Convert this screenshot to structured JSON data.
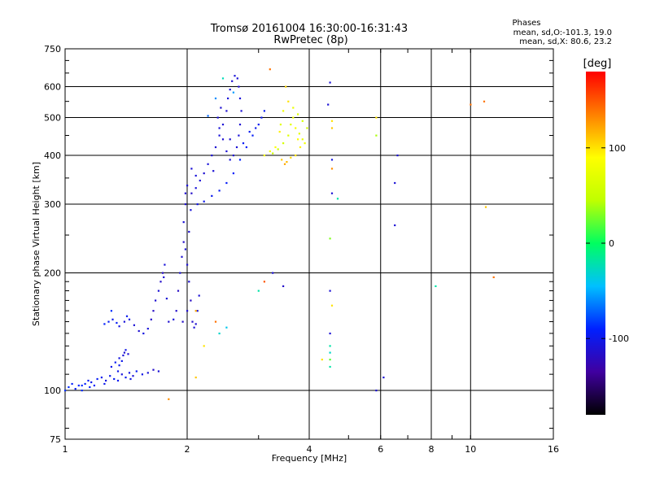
{
  "chart_data": {
    "type": "scatter",
    "title": "Tromsø 20161004 16:30:00-16:31:43",
    "subtitle": "RwPretec (8p)",
    "xlabel": "Frequency [MHz]",
    "ylabel": "Stationary phase Virtual Height [km]",
    "x_scale": "log",
    "y_scale": "log",
    "xlim": [
      1,
      16
    ],
    "ylim": [
      75,
      750
    ],
    "x_ticks": [
      1,
      2,
      4,
      6,
      8,
      10,
      16
    ],
    "x_tick_labels": [
      "1",
      "2",
      "4",
      "6",
      "8",
      "10",
      "16"
    ],
    "y_ticks": [
      75,
      100,
      200,
      300,
      400,
      500,
      600,
      750
    ],
    "y_tick_labels": [
      "75",
      "100",
      "200",
      "300",
      "400",
      "500",
      "600",
      "750"
    ],
    "grid": true,
    "legend": {
      "title": "Phases",
      "lines": [
        "mean, sd,O:-101.3, 19.0",
        "mean, sd,X:  80.6, 23.2"
      ]
    },
    "colorbar": {
      "label": "[deg]",
      "range": [
        -180,
        180
      ],
      "ticks": [
        100,
        0,
        -100
      ],
      "tick_labels": [
        "100",
        "0",
        "-100"
      ],
      "colormap": [
        "#000000",
        "#4000a0",
        "#0020ff",
        "#00c0ff",
        "#00ff60",
        "#c0ff00",
        "#ffff00",
        "#ff8000",
        "#ff0000"
      ]
    },
    "series": [
      {
        "points": [
          [
            1.0,
            100,
            -85
          ],
          [
            1.02,
            102,
            -88
          ],
          [
            1.04,
            104,
            -92
          ],
          [
            1.06,
            101,
            -95
          ],
          [
            1.08,
            103,
            -90
          ],
          [
            1.1,
            100,
            -87
          ],
          [
            1.12,
            104,
            -93
          ],
          [
            1.14,
            106,
            -96
          ],
          [
            1.16,
            105,
            -100
          ],
          [
            1.18,
            103,
            -92
          ],
          [
            1.2,
            107,
            -95
          ],
          [
            1.23,
            108,
            -98
          ],
          [
            1.26,
            106,
            -105
          ],
          [
            1.29,
            109,
            -100
          ],
          [
            1.32,
            107,
            -95
          ],
          [
            1.35,
            112,
            -102
          ],
          [
            1.38,
            110,
            -108
          ],
          [
            1.41,
            108,
            -98
          ],
          [
            1.44,
            111,
            -104
          ],
          [
            1.47,
            109,
            -110
          ],
          [
            1.5,
            112,
            -96
          ],
          [
            1.55,
            110,
            -102
          ],
          [
            1.6,
            111,
            -108
          ],
          [
            1.65,
            113,
            -115
          ],
          [
            1.7,
            112,
            -110
          ],
          [
            1.1,
            103,
            -88
          ],
          [
            1.15,
            102,
            -92
          ],
          [
            1.25,
            104,
            -99
          ],
          [
            1.35,
            106,
            -97
          ],
          [
            1.45,
            107,
            -103
          ],
          [
            1.3,
            115,
            -100
          ],
          [
            1.33,
            118,
            -96
          ],
          [
            1.36,
            121,
            -104
          ],
          [
            1.39,
            123,
            -108
          ],
          [
            1.41,
            127,
            -102
          ],
          [
            1.43,
            124,
            -110
          ],
          [
            1.36,
            116,
            -98
          ],
          [
            1.38,
            119,
            -100
          ],
          [
            1.4,
            125,
            -112
          ],
          [
            1.25,
            148,
            -92
          ],
          [
            1.28,
            150,
            -96
          ],
          [
            1.31,
            152,
            -100
          ],
          [
            1.34,
            149,
            -95
          ],
          [
            1.36,
            146,
            -104
          ],
          [
            1.4,
            150,
            -108
          ],
          [
            1.44,
            152,
            -102
          ],
          [
            1.48,
            147,
            -110
          ],
          [
            1.52,
            142,
            -112
          ],
          [
            1.56,
            140,
            -105
          ],
          [
            1.6,
            144,
            -108
          ],
          [
            1.63,
            152,
            -115
          ],
          [
            1.65,
            160,
            -118
          ],
          [
            1.67,
            170,
            -112
          ],
          [
            1.7,
            180,
            -110
          ],
          [
            1.72,
            190,
            -115
          ],
          [
            1.74,
            200,
            -118
          ],
          [
            1.76,
            210,
            -108
          ],
          [
            1.75,
            195,
            -112
          ],
          [
            1.78,
            172,
            -110
          ],
          [
            1.3,
            160,
            -86
          ],
          [
            1.42,
            155,
            -98
          ],
          [
            1.8,
            150,
            -112
          ],
          [
            1.85,
            152,
            -108
          ],
          [
            1.88,
            160,
            -115
          ],
          [
            1.9,
            180,
            -118
          ],
          [
            1.92,
            200,
            -110
          ],
          [
            1.94,
            220,
            -112
          ],
          [
            1.96,
            240,
            -115
          ],
          [
            1.98,
            230,
            -108
          ],
          [
            2.0,
            210,
            -110
          ],
          [
            2.02,
            190,
            -112
          ],
          [
            2.04,
            170,
            -118
          ],
          [
            2.06,
            150,
            -115
          ],
          [
            2.08,
            145,
            -110
          ],
          [
            2.1,
            148,
            -112
          ],
          [
            2.12,
            160,
            -108
          ],
          [
            2.14,
            175,
            -110
          ],
          [
            1.95,
            150,
            -116
          ],
          [
            2.0,
            160,
            -113
          ],
          [
            2.02,
            255,
            -112
          ],
          [
            2.04,
            290,
            -108
          ],
          [
            1.96,
            270,
            -110
          ],
          [
            1.98,
            300,
            -113
          ],
          [
            1.98,
            320,
            -112
          ],
          [
            2.0,
            335,
            -110
          ],
          [
            2.05,
            320,
            -115
          ],
          [
            2.1,
            330,
            -108
          ],
          [
            2.15,
            345,
            -110
          ],
          [
            2.2,
            360,
            -112
          ],
          [
            2.25,
            380,
            -108
          ],
          [
            2.3,
            400,
            -110
          ],
          [
            2.35,
            420,
            -112
          ],
          [
            2.4,
            450,
            -108
          ],
          [
            2.45,
            480,
            -110
          ],
          [
            2.5,
            520,
            -112
          ],
          [
            2.52,
            560,
            -108
          ],
          [
            2.55,
            590,
            -110
          ],
          [
            2.58,
            620,
            -112
          ],
          [
            2.62,
            640,
            -108
          ],
          [
            2.66,
            630,
            -110
          ],
          [
            2.68,
            600,
            -112
          ],
          [
            2.7,
            560,
            -108
          ],
          [
            2.72,
            520,
            -110
          ],
          [
            2.7,
            480,
            -112
          ],
          [
            2.68,
            450,
            -108
          ],
          [
            2.65,
            420,
            -110
          ],
          [
            2.6,
            400,
            -112
          ],
          [
            2.55,
            390,
            -108
          ],
          [
            2.5,
            410,
            -110
          ],
          [
            2.45,
            440,
            -112
          ],
          [
            2.4,
            470,
            -108
          ],
          [
            2.38,
            500,
            -110
          ],
          [
            2.42,
            530,
            -112
          ],
          [
            2.12,
            300,
            -102
          ],
          [
            2.2,
            305,
            -100
          ],
          [
            2.3,
            315,
            -98
          ],
          [
            2.4,
            325,
            -96
          ],
          [
            2.5,
            340,
            -94
          ],
          [
            2.6,
            360,
            -92
          ],
          [
            2.7,
            390,
            -90
          ],
          [
            2.8,
            420,
            -92
          ],
          [
            2.9,
            450,
            -94
          ],
          [
            3.0,
            480,
            -96
          ],
          [
            3.05,
            500,
            -98
          ],
          [
            3.1,
            520,
            -96
          ],
          [
            2.75,
            430,
            -95
          ],
          [
            2.85,
            460,
            -97
          ],
          [
            2.95,
            470,
            -99
          ],
          [
            2.05,
            370,
            -110
          ],
          [
            2.1,
            355,
            -108
          ],
          [
            2.25,
            505,
            -70
          ],
          [
            2.35,
            560,
            -60
          ],
          [
            2.6,
            580,
            -55
          ],
          [
            2.55,
            440,
            -112
          ],
          [
            2.45,
            630,
            -25
          ],
          [
            2.32,
            365,
            -110
          ],
          [
            3.25,
            405,
            50
          ],
          [
            3.35,
            415,
            55
          ],
          [
            3.45,
            430,
            60
          ],
          [
            3.55,
            450,
            65
          ],
          [
            3.6,
            480,
            70
          ],
          [
            3.65,
            500,
            80
          ],
          [
            3.7,
            470,
            85
          ],
          [
            3.75,
            440,
            90
          ],
          [
            3.8,
            420,
            95
          ],
          [
            3.55,
            550,
            100
          ],
          [
            3.5,
            600,
            105
          ],
          [
            3.65,
            530,
            75
          ],
          [
            3.75,
            510,
            65
          ],
          [
            3.85,
            490,
            60
          ],
          [
            3.95,
            470,
            55
          ],
          [
            3.4,
            480,
            70
          ],
          [
            3.45,
            520,
            80
          ],
          [
            3.38,
            460,
            95
          ],
          [
            3.42,
            390,
            110
          ],
          [
            3.48,
            380,
            120
          ],
          [
            3.52,
            385,
            115
          ],
          [
            3.6,
            395,
            105
          ],
          [
            3.7,
            400,
            100
          ],
          [
            3.3,
            420,
            90
          ],
          [
            3.2,
            410,
            85
          ],
          [
            3.1,
            400,
            90
          ],
          [
            3.78,
            455,
            70
          ],
          [
            3.85,
            440,
            75
          ],
          [
            3.9,
            430,
            80
          ],
          [
            3.2,
            665,
            140
          ],
          [
            3.1,
            190,
            150
          ],
          [
            3.0,
            180,
            -20
          ],
          [
            2.2,
            130,
            100
          ],
          [
            2.35,
            150,
            140
          ],
          [
            2.1,
            160,
            120
          ],
          [
            1.8,
            95,
            130
          ],
          [
            2.1,
            108,
            110
          ],
          [
            2.4,
            140,
            -30
          ],
          [
            2.5,
            145,
            -40
          ],
          [
            3.25,
            200,
            -110
          ],
          [
            3.45,
            185,
            -115
          ],
          [
            4.5,
            615,
            -110
          ],
          [
            4.45,
            540,
            -110
          ],
          [
            4.55,
            490,
            100
          ],
          [
            4.55,
            470,
            110
          ],
          [
            4.55,
            390,
            -105
          ],
          [
            4.55,
            370,
            130
          ],
          [
            4.55,
            320,
            -110
          ],
          [
            4.7,
            310,
            -20
          ],
          [
            4.5,
            245,
            30
          ],
          [
            4.5,
            180,
            -110
          ],
          [
            4.55,
            165,
            100
          ],
          [
            4.5,
            140,
            -110
          ],
          [
            4.5,
            130,
            -20
          ],
          [
            4.5,
            125,
            -30
          ],
          [
            4.5,
            120,
            20
          ],
          [
            4.5,
            115,
            -20
          ],
          [
            4.3,
            120,
            100
          ],
          [
            5.85,
            500,
            100
          ],
          [
            5.85,
            450,
            40
          ],
          [
            5.85,
            100,
            -110
          ],
          [
            6.6,
            400,
            -110
          ],
          [
            6.5,
            340,
            -110
          ],
          [
            6.5,
            265,
            -110
          ],
          [
            6.1,
            108,
            -110
          ],
          [
            8.2,
            185,
            -20
          ],
          [
            10.0,
            540,
            140
          ],
          [
            10.8,
            550,
            140
          ],
          [
            10.9,
            295,
            110
          ],
          [
            11.4,
            195,
            140
          ]
        ]
      }
    ]
  }
}
